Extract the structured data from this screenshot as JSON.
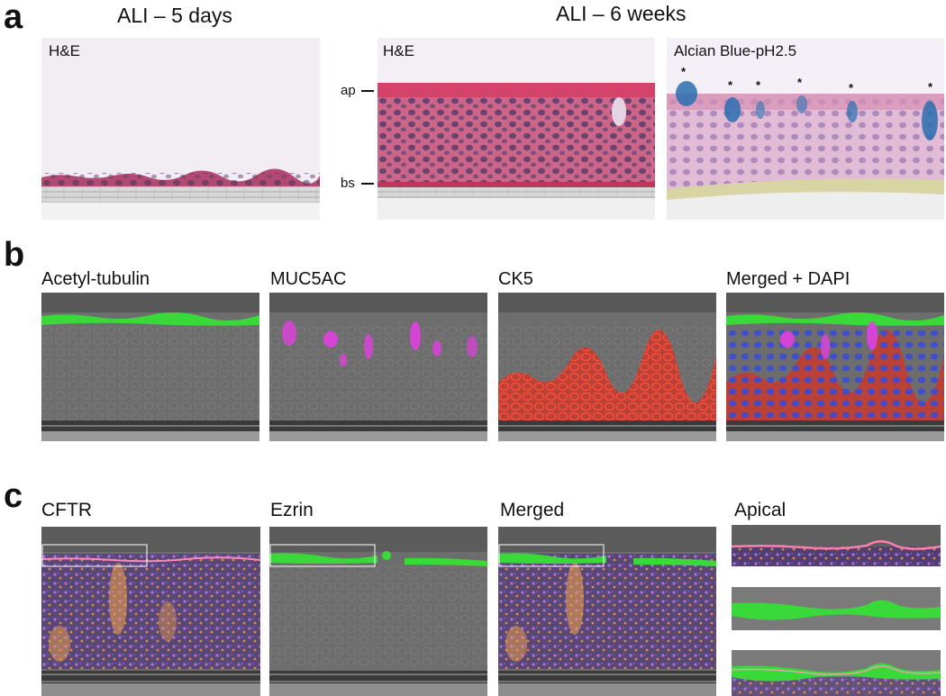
{
  "panel_a": {
    "label": "a",
    "title_left": "ALI – 5 days",
    "title_right": "ALI – 6 weeks",
    "img1_label": "H&E",
    "img2_label": "H&E",
    "img3_label": "Alcian Blue-pH2.5",
    "axis_ap": "ap",
    "axis_bs": "bs",
    "star": "*"
  },
  "panel_b": {
    "label": "b",
    "titles": [
      "Acetyl-tubulin",
      "MUC5AC",
      "CK5",
      "Merged + DAPI"
    ]
  },
  "panel_c": {
    "label": "c",
    "titles": [
      "CFTR",
      "Ezrin",
      "Merged",
      "Apical"
    ]
  },
  "colors": {
    "he_pink": "#d4587a",
    "he_nuclei": "#5a3a6e",
    "alcian_blue": "#2a6fb0",
    "acetyl_tubulin_green": "#39d93a",
    "muc5ac_magenta": "#e040e0",
    "ck5_red": "#e23a2a",
    "dapi_blue": "#3a4cd8",
    "cftr_orange": "#f2a24a",
    "brightfield_gray": "#6f6f6f"
  }
}
